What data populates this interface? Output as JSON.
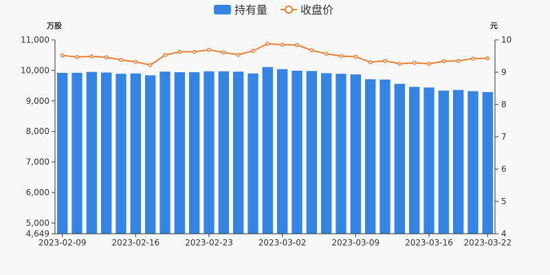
{
  "chart_data": {
    "type": "bar+line",
    "legend": {
      "placement": "top-center",
      "items": [
        "持有量",
        "收盘价"
      ]
    },
    "y_left": {
      "unit": "万股",
      "min": 4649,
      "max": 11000,
      "ticks": [
        "4,649",
        "5,000",
        "6,000",
        "7,000",
        "8,000",
        "9,000",
        "10,000",
        "11,000"
      ],
      "tick_values": [
        4649,
        5000,
        6000,
        7000,
        8000,
        9000,
        10000,
        11000
      ]
    },
    "y_right": {
      "unit": "元",
      "min": 4,
      "max": 10,
      "ticks": [
        "4",
        "5",
        "6",
        "7",
        "8",
        "9",
        "10"
      ],
      "tick_values": [
        4,
        5,
        6,
        7,
        8,
        9,
        10
      ]
    },
    "x_labels": [
      {
        "label": "2023-02-09",
        "index": 0
      },
      {
        "label": "2023-02-16",
        "index": 5
      },
      {
        "label": "2023-02-23",
        "index": 10
      },
      {
        "label": "2023-03-02",
        "index": 15
      },
      {
        "label": "2023-03-09",
        "index": 20
      },
      {
        "label": "2023-03-16",
        "index": 25
      },
      {
        "label": "2023-03-22",
        "index": 29
      }
    ],
    "series": [
      {
        "name": "持有量",
        "type": "bar",
        "axis": "left",
        "color": "#3584e4",
        "values": [
          9920,
          9920,
          9950,
          9930,
          9890,
          9900,
          9840,
          9960,
          9940,
          9940,
          9970,
          9970,
          9960,
          9900,
          10110,
          10040,
          9990,
          9980,
          9910,
          9890,
          9870,
          9710,
          9700,
          9560,
          9460,
          9440,
          9340,
          9360,
          9320,
          9290
        ]
      },
      {
        "name": "收盘价",
        "type": "line",
        "axis": "right",
        "color": "#ee7d31",
        "values": [
          9.52,
          9.47,
          9.49,
          9.46,
          9.38,
          9.32,
          9.22,
          9.53,
          9.63,
          9.63,
          9.69,
          9.61,
          9.54,
          9.66,
          9.88,
          9.85,
          9.84,
          9.68,
          9.57,
          9.5,
          9.48,
          9.31,
          9.35,
          9.26,
          9.29,
          9.26,
          9.34,
          9.35,
          9.42,
          9.43
        ]
      }
    ]
  }
}
